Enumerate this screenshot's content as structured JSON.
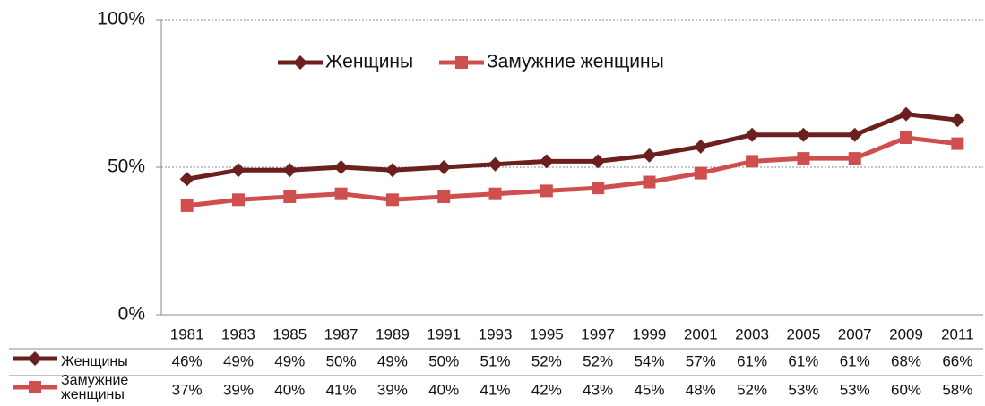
{
  "chart_data": {
    "type": "line",
    "categories": [
      "1981",
      "1983",
      "1985",
      "1987",
      "1989",
      "1991",
      "1993",
      "1995",
      "1997",
      "1999",
      "2001",
      "2003",
      "2005",
      "2007",
      "2009",
      "2011"
    ],
    "series": [
      {
        "name": "Женщины",
        "color": "#6b1f1f",
        "marker": "diamond",
        "values": [
          46,
          49,
          49,
          50,
          49,
          50,
          51,
          52,
          52,
          54,
          57,
          61,
          61,
          61,
          68,
          66
        ],
        "value_labels": [
          "46%",
          "49%",
          "49%",
          "50%",
          "49%",
          "50%",
          "51%",
          "52%",
          "52%",
          "54%",
          "57%",
          "61%",
          "61%",
          "61%",
          "68%",
          "66%"
        ]
      },
      {
        "name": "Замужние женщины",
        "color": "#cf4f4f",
        "marker": "square",
        "values": [
          37,
          39,
          40,
          41,
          39,
          40,
          41,
          42,
          43,
          45,
          48,
          52,
          53,
          53,
          60,
          58
        ],
        "value_labels": [
          "37%",
          "39%",
          "40%",
          "41%",
          "39%",
          "40%",
          "41%",
          "42%",
          "43%",
          "45%",
          "48%",
          "52%",
          "53%",
          "53%",
          "60%",
          "58%"
        ]
      }
    ],
    "ylim": [
      0,
      100
    ],
    "yticks": [
      {
        "value": 0,
        "label": "0%"
      },
      {
        "value": 50,
        "label": "50%"
      },
      {
        "value": 100,
        "label": "100%"
      }
    ],
    "grid": true,
    "legend": "top",
    "data_table": true
  }
}
